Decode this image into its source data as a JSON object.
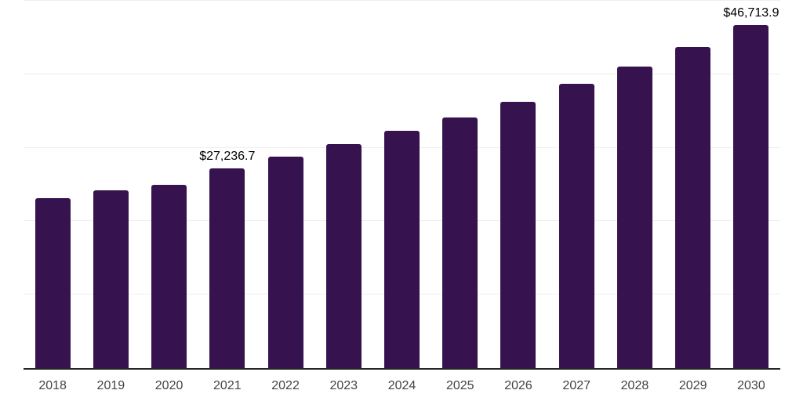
{
  "chart_data": {
    "type": "bar",
    "title": "",
    "xlabel": "",
    "ylabel": "",
    "categories": [
      "2018",
      "2019",
      "2020",
      "2021",
      "2022",
      "2023",
      "2024",
      "2025",
      "2026",
      "2027",
      "2028",
      "2029",
      "2030"
    ],
    "values": [
      23150,
      24250,
      25000,
      27236.7,
      28750,
      30500,
      32300,
      34150,
      36250,
      38750,
      41050,
      43750,
      46713.9
    ],
    "annotations": [
      {
        "category": "2021",
        "text": "$27,236.7"
      },
      {
        "category": "2030",
        "text": "$46,713.9"
      }
    ],
    "ylim": [
      0,
      50000
    ],
    "gridline_step": 10000,
    "grid": true,
    "y_axis_labels_visible": false,
    "legend_position": "none",
    "bar_color": "#36124f",
    "gridline_color": "#efefef",
    "axis_line_color": "#262626",
    "tick_label_color": "#444444",
    "data_label_color": "#000000"
  }
}
